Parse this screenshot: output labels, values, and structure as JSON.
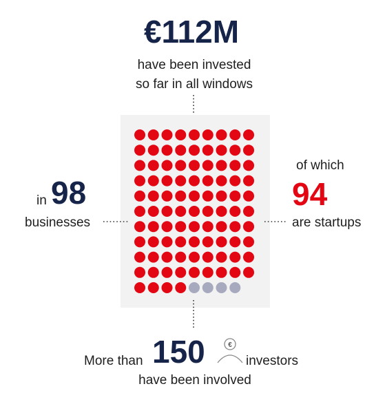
{
  "headline": {
    "amount": "€112M",
    "line1": "have been invested",
    "line2": "so far in all windows"
  },
  "businesses": {
    "prefix": "in",
    "value": 98,
    "label": "businesses"
  },
  "startups": {
    "prefix": "of which",
    "value": 94,
    "label": "are startups"
  },
  "investors": {
    "prefix": "More than",
    "value": 150,
    "label": "investors",
    "line2": "have been involved"
  },
  "colors": {
    "startup": "#e30613",
    "other": "#a7a9be"
  }
}
